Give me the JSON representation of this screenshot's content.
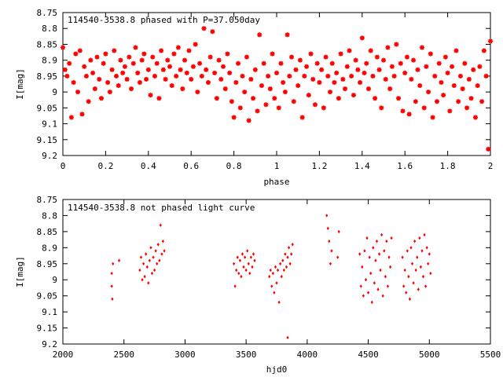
{
  "chart_data": [
    {
      "type": "scatter",
      "title": "114540-3538.8 phased with P=37.050day",
      "xlabel": "phase",
      "ylabel": "I[mag]",
      "xlim": [
        0,
        2
      ],
      "ylim": [
        8.75,
        9.2
      ],
      "y_inverted": true,
      "x_ticks": [
        0,
        0.2,
        0.4,
        0.6,
        0.8,
        1,
        1.2,
        1.4,
        1.6,
        1.8,
        2
      ],
      "x_tick_labels": [
        "0",
        "0.2",
        "0.4",
        "0.6",
        "0.8",
        "1",
        "1.2",
        "1.4",
        "1.6",
        "1.8",
        "2"
      ],
      "y_ticks": [
        8.75,
        8.8,
        8.85,
        8.9,
        8.95,
        9,
        9.05,
        9.1,
        9.15,
        9.2
      ],
      "y_tick_labels": [
        "8.75",
        "8.8",
        "8.85",
        "8.9",
        "8.95",
        "9",
        "9.05",
        "9.1",
        "9.15",
        "9.2"
      ],
      "marker_color": "#ff0000",
      "grid": false,
      "points": [
        [
          0.0,
          8.86
        ],
        [
          0.01,
          8.93
        ],
        [
          0.02,
          8.95
        ],
        [
          0.03,
          8.91
        ],
        [
          0.04,
          9.08
        ],
        [
          0.05,
          8.97
        ],
        [
          0.06,
          8.88
        ],
        [
          0.07,
          9.0
        ],
        [
          0.08,
          8.87
        ],
        [
          0.09,
          9.07
        ],
        [
          0.1,
          8.92
        ],
        [
          0.11,
          8.95
        ],
        [
          0.12,
          9.03
        ],
        [
          0.13,
          8.9
        ],
        [
          0.14,
          8.94
        ],
        [
          0.15,
          8.99
        ],
        [
          0.16,
          8.89
        ],
        [
          0.17,
          8.96
        ],
        [
          0.18,
          9.02
        ],
        [
          0.19,
          8.91
        ],
        [
          0.2,
          8.88
        ],
        [
          0.21,
          8.97
        ],
        [
          0.22,
          9.0
        ],
        [
          0.23,
          8.93
        ],
        [
          0.24,
          8.87
        ],
        [
          0.25,
          8.95
        ],
        [
          0.26,
          8.98
        ],
        [
          0.27,
          8.9
        ],
        [
          0.28,
          8.94
        ],
        [
          0.29,
          8.92
        ],
        [
          0.3,
          8.96
        ],
        [
          0.31,
          8.89
        ],
        [
          0.32,
          8.99
        ],
        [
          0.33,
          8.91
        ],
        [
          0.34,
          8.86
        ],
        [
          0.35,
          8.94
        ],
        [
          0.36,
          8.97
        ],
        [
          0.37,
          8.9
        ],
        [
          0.38,
          8.88
        ],
        [
          0.39,
          8.96
        ],
        [
          0.4,
          8.93
        ],
        [
          0.41,
          9.01
        ],
        [
          0.42,
          8.89
        ],
        [
          0.43,
          8.95
        ],
        [
          0.44,
          8.91
        ],
        [
          0.45,
          9.02
        ],
        [
          0.46,
          8.87
        ],
        [
          0.47,
          8.93
        ],
        [
          0.48,
          8.96
        ],
        [
          0.49,
          8.9
        ],
        [
          0.5,
          8.92
        ],
        [
          0.51,
          8.98
        ],
        [
          0.52,
          8.88
        ],
        [
          0.53,
          8.95
        ],
        [
          0.54,
          8.86
        ],
        [
          0.55,
          8.93
        ],
        [
          0.56,
          8.99
        ],
        [
          0.57,
          8.9
        ],
        [
          0.58,
          8.94
        ],
        [
          0.59,
          8.87
        ],
        [
          0.6,
          8.96
        ],
        [
          0.61,
          8.92
        ],
        [
          0.62,
          8.85
        ],
        [
          0.63,
          9.0
        ],
        [
          0.64,
          8.91
        ],
        [
          0.65,
          8.95
        ],
        [
          0.66,
          8.8
        ],
        [
          0.67,
          8.93
        ],
        [
          0.68,
          8.97
        ],
        [
          0.69,
          8.89
        ],
        [
          0.7,
          8.81
        ],
        [
          0.71,
          8.94
        ],
        [
          0.72,
          9.02
        ],
        [
          0.73,
          8.9
        ],
        [
          0.74,
          8.96
        ],
        [
          0.75,
          8.92
        ],
        [
          0.76,
          8.99
        ],
        [
          0.77,
          8.88
        ],
        [
          0.78,
          8.94
        ],
        [
          0.79,
          9.03
        ],
        [
          0.8,
          9.08
        ],
        [
          0.81,
          8.97
        ],
        [
          0.82,
          8.91
        ],
        [
          0.83,
          9.05
        ],
        [
          0.84,
          8.95
        ],
        [
          0.85,
          9.0
        ],
        [
          0.86,
          8.89
        ],
        [
          0.87,
          9.09
        ],
        [
          0.88,
          8.96
        ],
        [
          0.89,
          9.02
        ],
        [
          0.9,
          8.93
        ],
        [
          0.91,
          9.06
        ],
        [
          0.92,
          8.82
        ],
        [
          0.93,
          8.98
        ],
        [
          0.94,
          8.91
        ],
        [
          0.95,
          9.04
        ],
        [
          0.96,
          8.95
        ],
        [
          0.97,
          8.99
        ],
        [
          0.98,
          8.88
        ],
        [
          0.99,
          9.02
        ],
        [
          1.0,
          8.94
        ],
        [
          1.01,
          9.05
        ],
        [
          1.02,
          8.91
        ],
        [
          1.03,
          8.97
        ],
        [
          1.04,
          9.0
        ],
        [
          1.05,
          8.82
        ],
        [
          1.06,
          8.95
        ],
        [
          1.07,
          8.89
        ],
        [
          1.08,
          9.03
        ],
        [
          1.09,
          8.93
        ],
        [
          1.1,
          8.98
        ],
        [
          1.11,
          8.9
        ],
        [
          1.12,
          9.08
        ],
        [
          1.13,
          8.95
        ],
        [
          1.14,
          8.92
        ],
        [
          1.15,
          9.01
        ],
        [
          1.16,
          8.88
        ],
        [
          1.17,
          8.96
        ],
        [
          1.18,
          9.04
        ],
        [
          1.19,
          8.91
        ],
        [
          1.2,
          8.97
        ],
        [
          1.21,
          8.93
        ],
        [
          1.22,
          9.05
        ],
        [
          1.23,
          8.89
        ],
        [
          1.24,
          8.95
        ],
        [
          1.25,
          9.0
        ],
        [
          1.26,
          8.91
        ],
        [
          1.27,
          8.97
        ],
        [
          1.28,
          8.94
        ],
        [
          1.29,
          9.02
        ],
        [
          1.3,
          8.88
        ],
        [
          1.31,
          8.96
        ],
        [
          1.32,
          8.99
        ],
        [
          1.33,
          8.92
        ],
        [
          1.34,
          8.87
        ],
        [
          1.35,
          8.95
        ],
        [
          1.36,
          9.01
        ],
        [
          1.37,
          8.9
        ],
        [
          1.38,
          8.93
        ],
        [
          1.39,
          8.97
        ],
        [
          1.4,
          8.83
        ],
        [
          1.41,
          8.94
        ],
        [
          1.42,
          8.91
        ],
        [
          1.43,
          8.99
        ],
        [
          1.44,
          8.87
        ],
        [
          1.45,
          8.95
        ],
        [
          1.46,
          9.02
        ],
        [
          1.47,
          8.89
        ],
        [
          1.48,
          8.93
        ],
        [
          1.49,
          9.05
        ],
        [
          1.5,
          8.9
        ],
        [
          1.51,
          8.96
        ],
        [
          1.52,
          8.86
        ],
        [
          1.53,
          8.99
        ],
        [
          1.54,
          8.92
        ],
        [
          1.55,
          8.95
        ],
        [
          1.56,
          8.85
        ],
        [
          1.57,
          9.02
        ],
        [
          1.58,
          8.91
        ],
        [
          1.59,
          9.06
        ],
        [
          1.6,
          8.94
        ],
        [
          1.61,
          8.89
        ],
        [
          1.62,
          9.07
        ],
        [
          1.63,
          8.96
        ],
        [
          1.64,
          8.9
        ],
        [
          1.65,
          9.03
        ],
        [
          1.66,
          8.93
        ],
        [
          1.67,
          8.98
        ],
        [
          1.68,
          8.86
        ],
        [
          1.69,
          9.05
        ],
        [
          1.7,
          8.92
        ],
        [
          1.71,
          9.0
        ],
        [
          1.72,
          8.88
        ],
        [
          1.73,
          9.08
        ],
        [
          1.74,
          8.95
        ],
        [
          1.75,
          9.03
        ],
        [
          1.76,
          8.91
        ],
        [
          1.77,
          8.97
        ],
        [
          1.78,
          9.01
        ],
        [
          1.79,
          8.89
        ],
        [
          1.8,
          8.94
        ],
        [
          1.81,
          9.06
        ],
        [
          1.82,
          8.92
        ],
        [
          1.83,
          8.98
        ],
        [
          1.84,
          8.87
        ],
        [
          1.85,
          9.03
        ],
        [
          1.86,
          8.95
        ],
        [
          1.87,
          8.99
        ],
        [
          1.88,
          8.91
        ],
        [
          1.89,
          9.05
        ],
        [
          1.9,
          8.96
        ],
        [
          1.91,
          9.02
        ],
        [
          1.92,
          8.93
        ],
        [
          1.93,
          9.08
        ],
        [
          1.94,
          8.98
        ],
        [
          1.95,
          8.92
        ],
        [
          1.96,
          9.03
        ],
        [
          1.97,
          8.87
        ],
        [
          1.98,
          8.95
        ],
        [
          1.99,
          9.18
        ],
        [
          2.0,
          8.84
        ]
      ]
    },
    {
      "type": "scatter",
      "title": "114540-3538.8 not phased light curve",
      "xlabel": "hjd0",
      "ylabel": "I[mag]",
      "xlim": [
        2000,
        5500
      ],
      "ylim": [
        8.75,
        9.2
      ],
      "y_inverted": true,
      "x_ticks": [
        2000,
        2500,
        3000,
        3500,
        4000,
        4500,
        5000,
        5500
      ],
      "x_tick_labels": [
        "2000",
        "2500",
        "3000",
        "3500",
        "4000",
        "4500",
        "5000",
        "5500"
      ],
      "y_ticks": [
        8.75,
        8.8,
        8.85,
        8.9,
        8.95,
        9,
        9.05,
        9.1,
        9.15,
        9.2
      ],
      "y_tick_labels": [
        "8.75",
        "8.8",
        "8.85",
        "8.9",
        "8.95",
        "9",
        "9.05",
        "9.1",
        "9.15",
        "9.2"
      ],
      "marker_color": "#ff0000",
      "grid": false,
      "points": [
        [
          2400,
          8.98
        ],
        [
          2400,
          9.02
        ],
        [
          2405,
          9.06
        ],
        [
          2410,
          8.95
        ],
        [
          2460,
          8.94
        ],
        [
          2630,
          8.97
        ],
        [
          2640,
          8.93
        ],
        [
          2650,
          9.0
        ],
        [
          2660,
          8.95
        ],
        [
          2670,
          8.99
        ],
        [
          2680,
          8.92
        ],
        [
          2690,
          8.96
        ],
        [
          2700,
          9.01
        ],
        [
          2710,
          8.94
        ],
        [
          2720,
          8.9
        ],
        [
          2730,
          8.98
        ],
        [
          2740,
          8.93
        ],
        [
          2750,
          8.97
        ],
        [
          2760,
          8.91
        ],
        [
          2770,
          8.95
        ],
        [
          2780,
          8.89
        ],
        [
          2790,
          8.94
        ],
        [
          2800,
          8.83
        ],
        [
          2810,
          8.92
        ],
        [
          2820,
          8.88
        ],
        [
          2830,
          8.91
        ],
        [
          3400,
          8.95
        ],
        [
          3410,
          9.02
        ],
        [
          3420,
          8.97
        ],
        [
          3430,
          8.93
        ],
        [
          3440,
          8.98
        ],
        [
          3450,
          8.94
        ],
        [
          3460,
          8.99
        ],
        [
          3470,
          8.92
        ],
        [
          3480,
          8.96
        ],
        [
          3490,
          8.93
        ],
        [
          3500,
          8.97
        ],
        [
          3510,
          8.91
        ],
        [
          3520,
          8.95
        ],
        [
          3530,
          8.98
        ],
        [
          3540,
          8.93
        ],
        [
          3550,
          8.96
        ],
        [
          3560,
          8.92
        ],
        [
          3570,
          8.94
        ],
        [
          3690,
          8.99
        ],
        [
          3700,
          8.97
        ],
        [
          3710,
          9.02
        ],
        [
          3720,
          8.98
        ],
        [
          3730,
          9.04
        ],
        [
          3740,
          8.96
        ],
        [
          3750,
          9.01
        ],
        [
          3760,
          8.97
        ],
        [
          3770,
          9.07
        ],
        [
          3780,
          8.95
        ],
        [
          3790,
          8.99
        ],
        [
          3800,
          8.94
        ],
        [
          3810,
          8.97
        ],
        [
          3820,
          8.92
        ],
        [
          3830,
          8.96
        ],
        [
          3840,
          8.93
        ],
        [
          3850,
          8.9
        ],
        [
          3860,
          8.95
        ],
        [
          3870,
          8.92
        ],
        [
          3880,
          8.89
        ],
        [
          3840,
          9.18
        ],
        [
          4160,
          8.8
        ],
        [
          4170,
          8.84
        ],
        [
          4180,
          8.88
        ],
        [
          4190,
          8.95
        ],
        [
          4200,
          8.91
        ],
        [
          4250,
          8.93
        ],
        [
          4260,
          8.85
        ],
        [
          4430,
          8.92
        ],
        [
          4440,
          9.02
        ],
        [
          4450,
          8.96
        ],
        [
          4460,
          9.05
        ],
        [
          4470,
          8.91
        ],
        [
          4480,
          9.0
        ],
        [
          4490,
          8.87
        ],
        [
          4500,
          9.04
        ],
        [
          4510,
          8.93
        ],
        [
          4520,
          8.98
        ],
        [
          4530,
          9.07
        ],
        [
          4540,
          8.9
        ],
        [
          4550,
          9.01
        ],
        [
          4560,
          8.94
        ],
        [
          4570,
          8.88
        ],
        [
          4580,
          9.03
        ],
        [
          4590,
          8.92
        ],
        [
          4600,
          8.97
        ],
        [
          4610,
          8.86
        ],
        [
          4620,
          9.05
        ],
        [
          4630,
          8.91
        ],
        [
          4640,
          8.99
        ],
        [
          4650,
          8.88
        ],
        [
          4660,
          9.02
        ],
        [
          4670,
          8.93
        ],
        [
          4680,
          8.96
        ],
        [
          4690,
          8.87
        ],
        [
          4780,
          8.93
        ],
        [
          4790,
          9.02
        ],
        [
          4800,
          8.97
        ],
        [
          4810,
          9.04
        ],
        [
          4820,
          8.91
        ],
        [
          4830,
          8.99
        ],
        [
          4840,
          9.06
        ],
        [
          4850,
          8.9
        ],
        [
          4860,
          8.95
        ],
        [
          4870,
          9.01
        ],
        [
          4880,
          8.88
        ],
        [
          4890,
          8.97
        ],
        [
          4900,
          8.93
        ],
        [
          4910,
          9.03
        ],
        [
          4920,
          8.87
        ],
        [
          4930,
          8.96
        ],
        [
          4940,
          8.91
        ],
        [
          4950,
          8.99
        ],
        [
          4960,
          8.86
        ],
        [
          4970,
          9.02
        ],
        [
          4980,
          8.9
        ],
        [
          4990,
          8.95
        ],
        [
          5000,
          8.92
        ],
        [
          5010,
          8.98
        ]
      ]
    }
  ]
}
